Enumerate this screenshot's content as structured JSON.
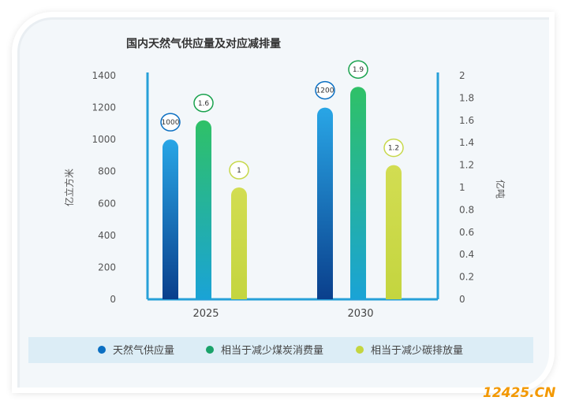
{
  "chart_data": {
    "type": "bar",
    "title": "国内天然气供应量及对应减排量",
    "categories": [
      "2025",
      "2030"
    ],
    "series": [
      {
        "name": "天然气供应量",
        "axis": "left",
        "values": [
          1000,
          1200
        ],
        "labels": [
          "1000",
          "1200"
        ],
        "color": "#0b6fc2"
      },
      {
        "name": "相当于减少煤炭消费量",
        "axis": "right",
        "values": [
          1.6,
          1.9
        ],
        "labels": [
          "1.6",
          "1.9"
        ],
        "color": "#1aa24e"
      },
      {
        "name": "相当于减少碳排放量",
        "axis": "right",
        "values": [
          1,
          1.2
        ],
        "labels": [
          "1",
          "1.2"
        ],
        "color": "#c7d84a"
      }
    ],
    "ylabel": "亿立方米",
    "y2label": "亿吨",
    "ylim": [
      0,
      1400
    ],
    "y2lim": [
      0,
      2
    ],
    "yticks": [
      "0",
      "200",
      "400",
      "600",
      "800",
      "1000",
      "1200",
      "1400"
    ],
    "y2ticks": [
      "0",
      "0.2",
      "0.4",
      "0.6",
      "0.8",
      "1",
      "1.2",
      "1.4",
      "1.6",
      "1.8",
      "2"
    ],
    "legend_position": "bottom",
    "grid": false
  },
  "watermark": {
    "text": "12425.CN",
    "color_main": "#f39800",
    "color_accent": "#1d2088"
  }
}
